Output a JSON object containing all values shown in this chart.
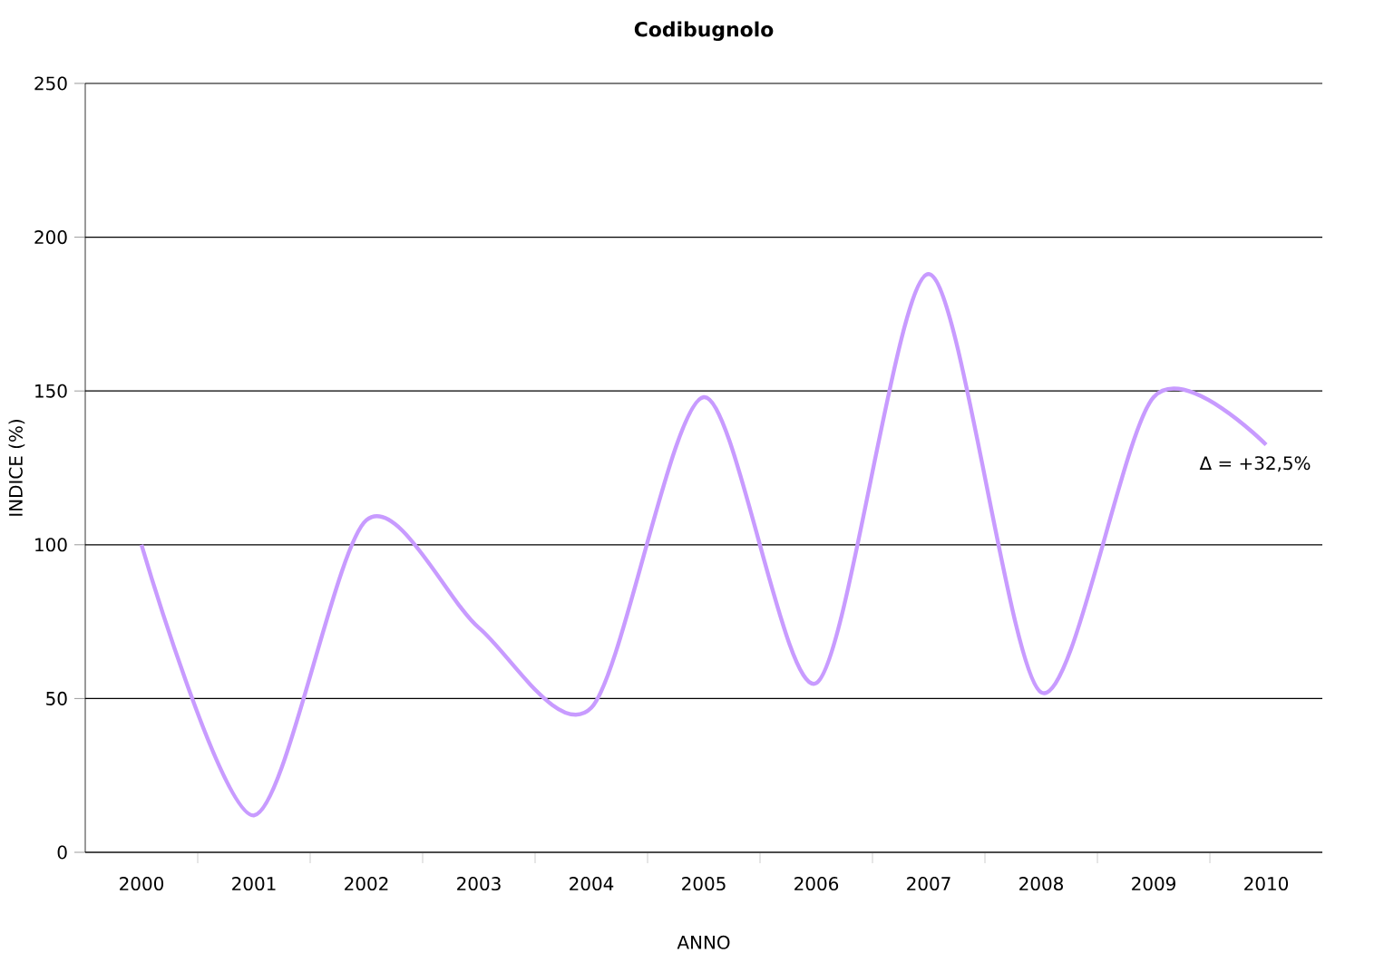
{
  "chart_data": {
    "type": "line",
    "title": "Codibugnolo",
    "xlabel": "ANNO",
    "ylabel": "INDICE (%)",
    "categories": [
      "2000",
      "2001",
      "2002",
      "2003",
      "2004",
      "2005",
      "2006",
      "2007",
      "2008",
      "2009",
      "2010"
    ],
    "series": [
      {
        "color": "#c89bff",
        "values": [
          100,
          12,
          108,
          73,
          47,
          148,
          55,
          188,
          52,
          148,
          132.5
        ]
      }
    ],
    "ylim": [
      0,
      250
    ],
    "yticks": [
      0,
      50,
      100,
      150,
      200,
      250
    ],
    "grid": "y",
    "marker": "none",
    "line_style": "solid",
    "annotations": [
      "Δ = +32,5%"
    ]
  }
}
